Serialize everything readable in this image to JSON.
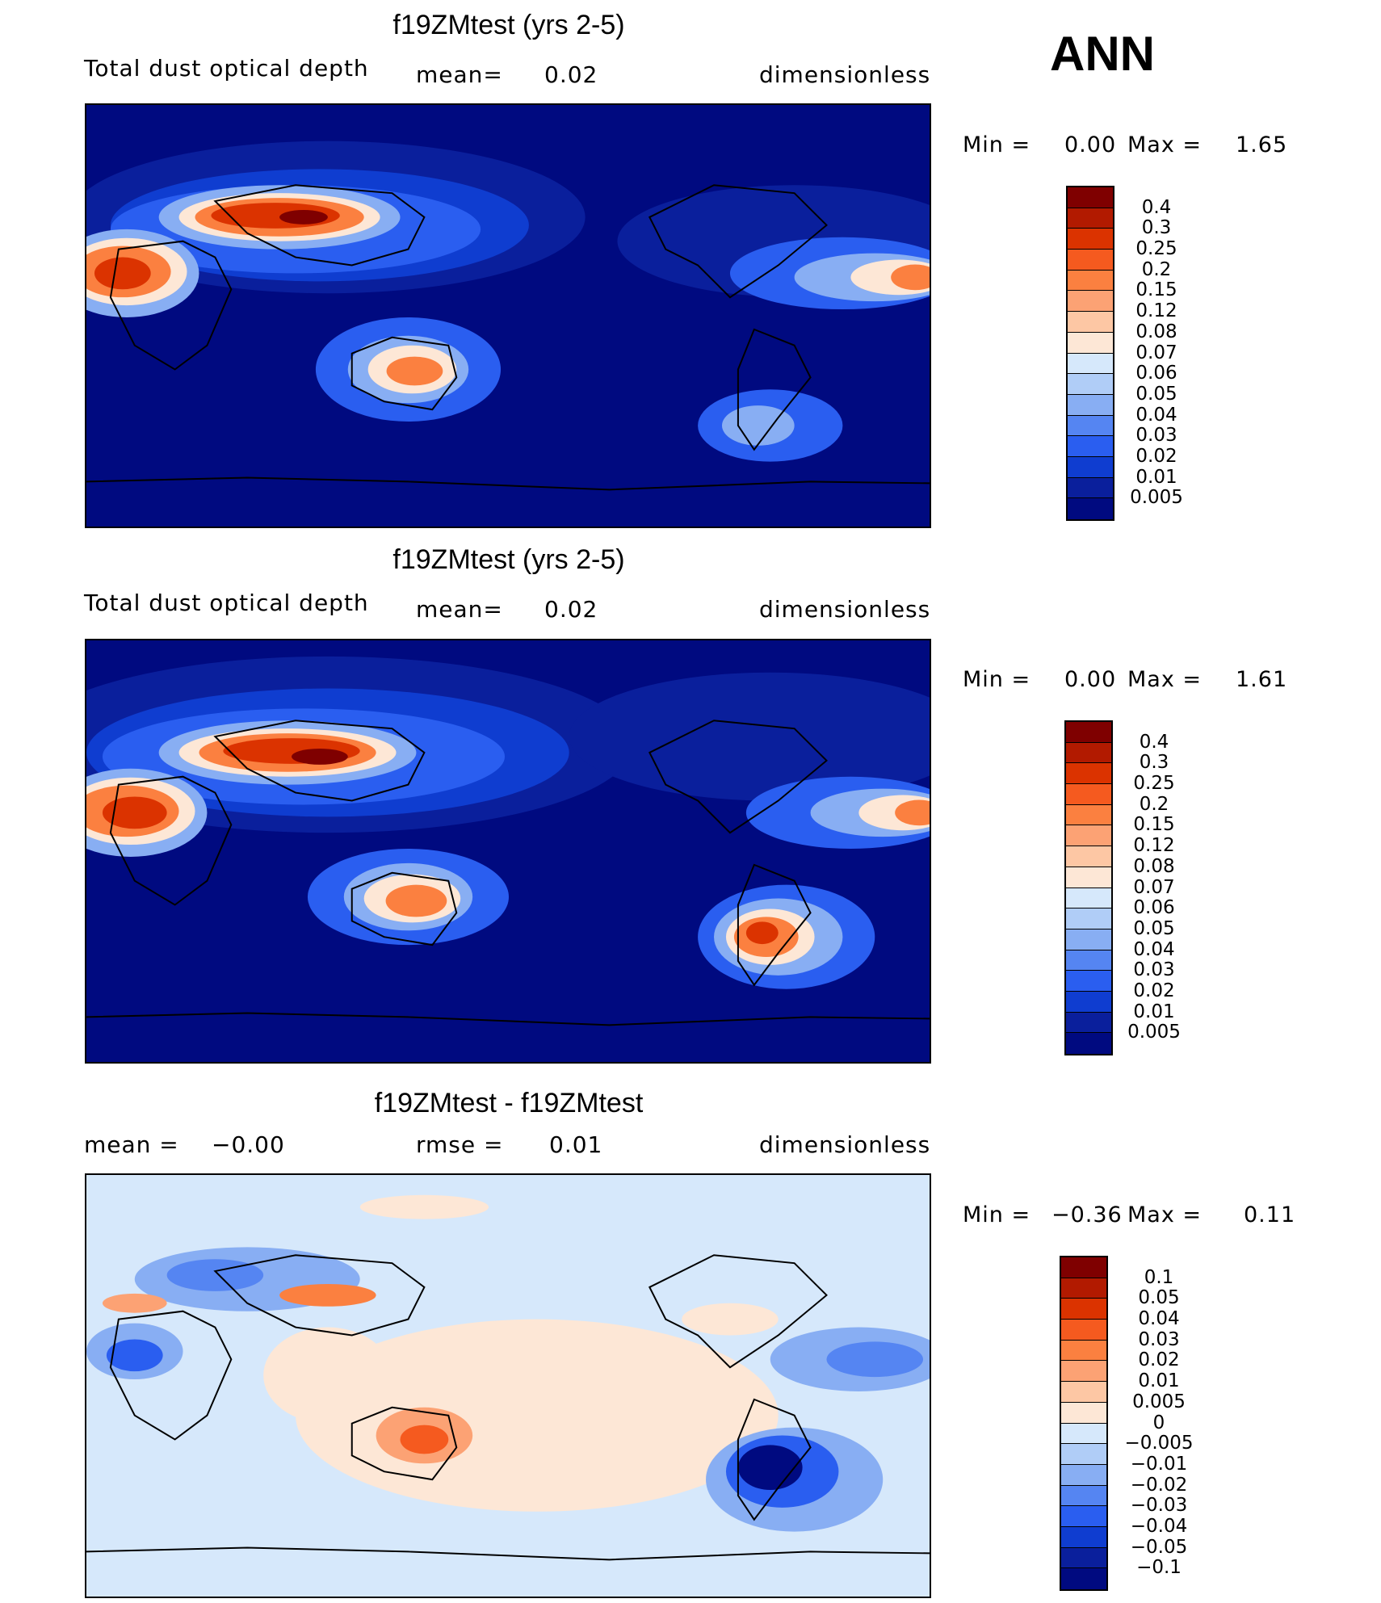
{
  "season": "ANN",
  "panels": [
    {
      "title": "f19ZMtest (yrs 2-5)",
      "left_text": "Total dust optical depth",
      "mid_label": "mean=",
      "mid_value": "0.02",
      "units": "dimensionless",
      "min_label": "Min  =",
      "min_value": "0.00",
      "max_label": "Max  =",
      "max_value": "1.65"
    },
    {
      "title": "f19ZMtest (yrs 2-5)",
      "left_text": "Total dust optical depth",
      "mid_label": "mean=",
      "mid_value": "0.02",
      "units": "dimensionless",
      "min_label": "Min  =",
      "min_value": "0.00",
      "max_label": "Max  =",
      "max_value": "1.61"
    },
    {
      "title": "f19ZMtest - f19ZMtest",
      "left_label": "mean  =",
      "left_value": "−0.00",
      "mid_label": "rmse  =",
      "mid_value": "0.01",
      "units": "dimensionless",
      "min_label": "Min  =",
      "min_value": "−0.36",
      "max_label": "Max  =",
      "max_value": "0.11"
    }
  ],
  "colorbar_abs": {
    "labels": [
      "0.4",
      "0.3",
      "0.25",
      "0.2",
      "0.15",
      "0.12",
      "0.08",
      "0.07",
      "0.06",
      "0.05",
      "0.04",
      "0.03",
      "0.02",
      "0.01",
      "0.005"
    ],
    "colors": [
      "#7f0000",
      "#b21a00",
      "#db3300",
      "#f55a1f",
      "#fb8040",
      "#fca274",
      "#fdc7a4",
      "#fde7d6",
      "#d6e8fb",
      "#b0cdf7",
      "#88aef3",
      "#5585f2",
      "#2a5ef0",
      "#0f3dd0",
      "#0a1f9c",
      "#000a80"
    ]
  },
  "colorbar_diff": {
    "labels": [
      "0.1",
      "0.05",
      "0.04",
      "0.03",
      "0.02",
      "0.01",
      "0.005",
      "0",
      "−0.005",
      "−0.01",
      "−0.02",
      "−0.03",
      "−0.04",
      "−0.05",
      "−0.1"
    ],
    "colors": [
      "#7f0000",
      "#b21a00",
      "#db3300",
      "#f55a1f",
      "#fb8040",
      "#fca274",
      "#fdc7a4",
      "#fde7d6",
      "#d6e8fb",
      "#b0cdf7",
      "#88aef3",
      "#5585f2",
      "#2a5ef0",
      "#0f3dd0",
      "#0a1f9c",
      "#000a80"
    ]
  }
}
